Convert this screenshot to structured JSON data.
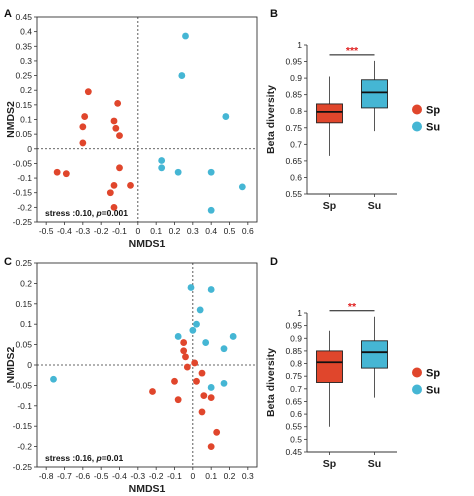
{
  "colors": {
    "Sp": "#e0462c",
    "Su": "#45b6d4",
    "star": "#e02020"
  },
  "chart_data": [
    {
      "panel": "A",
      "type": "scatter",
      "xlabel": "NMDS1",
      "ylabel": "NMDS2",
      "xlim": [
        -0.55,
        0.65
      ],
      "ylim": [
        -0.25,
        0.45
      ],
      "xticks": [
        -0.5,
        -0.4,
        -0.3,
        -0.2,
        -0.1,
        0,
        0.1,
        0.2,
        0.3,
        0.4,
        0.5,
        0.6
      ],
      "yticks": [
        -0.25,
        -0.2,
        -0.15,
        -0.1,
        -0.05,
        0,
        0.05,
        0.1,
        0.15,
        0.2,
        0.25,
        0.3,
        0.35,
        0.4,
        0.45
      ],
      "stress_label": "stress :0.10, ",
      "p_label": "p",
      "p_value": "=0.001",
      "series": [
        {
          "name": "Sp",
          "points": [
            [
              -0.27,
              0.195
            ],
            [
              -0.29,
              0.11
            ],
            [
              -0.3,
              0.075
            ],
            [
              -0.3,
              0.02
            ],
            [
              -0.11,
              0.155
            ],
            [
              -0.13,
              0.095
            ],
            [
              -0.12,
              0.07
            ],
            [
              -0.1,
              0.045
            ],
            [
              -0.44,
              -0.08
            ],
            [
              -0.39,
              -0.085
            ],
            [
              -0.1,
              -0.065
            ],
            [
              -0.04,
              -0.125
            ],
            [
              -0.13,
              -0.125
            ],
            [
              -0.15,
              -0.15
            ],
            [
              -0.13,
              -0.2
            ]
          ]
        },
        {
          "name": "Su",
          "points": [
            [
              0.26,
              0.385
            ],
            [
              0.24,
              0.25
            ],
            [
              0.48,
              0.11
            ],
            [
              0.13,
              -0.04
            ],
            [
              0.13,
              -0.065
            ],
            [
              0.22,
              -0.08
            ],
            [
              0.4,
              -0.08
            ],
            [
              0.57,
              -0.13
            ],
            [
              0.4,
              -0.21
            ]
          ]
        }
      ]
    },
    {
      "panel": "B",
      "type": "box",
      "ylabel": "Beta diversity",
      "categories": [
        "Sp",
        "Su"
      ],
      "ylim": [
        0.55,
        1.0
      ],
      "yticks": [
        0.55,
        0.6,
        0.65,
        0.7,
        0.75,
        0.8,
        0.85,
        0.9,
        0.95,
        1
      ],
      "boxes": [
        {
          "name": "Sp",
          "min": 0.665,
          "q1": 0.765,
          "median": 0.798,
          "q3": 0.822,
          "max": 0.905
        },
        {
          "name": "Su",
          "min": 0.74,
          "q1": 0.81,
          "median": 0.857,
          "q3": 0.895,
          "max": 0.952
        }
      ],
      "significance": "***",
      "legend": [
        "Sp",
        "Su"
      ]
    },
    {
      "panel": "C",
      "type": "scatter",
      "xlabel": "NMDS1",
      "ylabel": "NMDS2",
      "xlim": [
        -0.85,
        0.35
      ],
      "ylim": [
        -0.25,
        0.25
      ],
      "xticks": [
        -0.8,
        -0.7,
        -0.6,
        -0.5,
        -0.4,
        -0.3,
        -0.2,
        -0.1,
        0,
        0.1,
        0.2,
        0.3
      ],
      "yticks": [
        -0.25,
        -0.2,
        -0.15,
        -0.1,
        -0.05,
        0,
        0.05,
        0.1,
        0.15,
        0.2,
        0.25
      ],
      "stress_label": "stress :0.16, ",
      "p_label": "p",
      "p_value": "=0.01",
      "series": [
        {
          "name": "Sp",
          "points": [
            [
              -0.05,
              0.055
            ],
            [
              -0.05,
              0.035
            ],
            [
              -0.04,
              0.02
            ],
            [
              0.01,
              0.005
            ],
            [
              -0.03,
              -0.005
            ],
            [
              0.05,
              -0.02
            ],
            [
              -0.1,
              -0.04
            ],
            [
              0.02,
              -0.04
            ],
            [
              -0.22,
              -0.065
            ],
            [
              0.06,
              -0.075
            ],
            [
              0.1,
              -0.08
            ],
            [
              -0.08,
              -0.085
            ],
            [
              0.05,
              -0.115
            ],
            [
              0.13,
              -0.165
            ],
            [
              0.1,
              -0.2
            ]
          ]
        },
        {
          "name": "Su",
          "points": [
            [
              -0.01,
              0.19
            ],
            [
              0.1,
              0.185
            ],
            [
              0.04,
              0.135
            ],
            [
              0.02,
              0.1
            ],
            [
              0.0,
              0.085
            ],
            [
              -0.08,
              0.07
            ],
            [
              0.22,
              0.07
            ],
            [
              0.07,
              0.055
            ],
            [
              0.17,
              0.04
            ],
            [
              0.17,
              -0.045
            ],
            [
              0.1,
              -0.055
            ],
            [
              -0.76,
              -0.035
            ]
          ]
        }
      ]
    },
    {
      "panel": "D",
      "type": "box",
      "ylabel": "Beta diversity",
      "categories": [
        "Sp",
        "Su"
      ],
      "ylim": [
        0.45,
        1.0
      ],
      "yticks": [
        0.45,
        0.5,
        0.55,
        0.6,
        0.65,
        0.7,
        0.75,
        0.8,
        0.85,
        0.9,
        0.95,
        1
      ],
      "boxes": [
        {
          "name": "Sp",
          "min": 0.55,
          "q1": 0.725,
          "median": 0.805,
          "q3": 0.85,
          "max": 0.93
        },
        {
          "name": "Su",
          "min": 0.665,
          "q1": 0.782,
          "median": 0.845,
          "q3": 0.89,
          "max": 0.985
        }
      ],
      "significance": "**",
      "legend": [
        "Sp",
        "Su"
      ]
    }
  ]
}
